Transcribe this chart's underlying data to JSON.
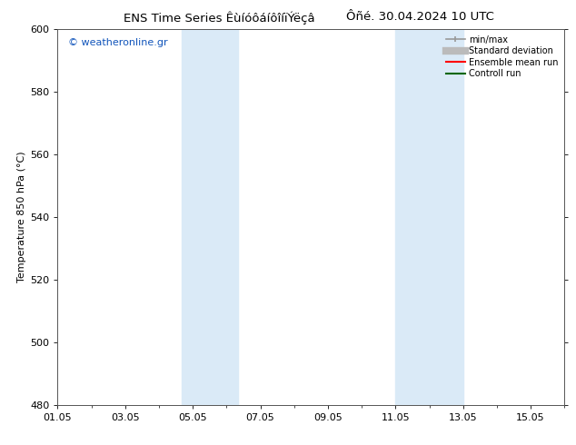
{
  "title_left": "ENS Time Series ÊùíóôáíôîíïÝëçâ",
  "title_right": "Ôñé. 30.04.2024 10 UTC",
  "ylabel": "Temperature 850 hPa (°C)",
  "watermark": "© weatheronline.gr",
  "ylim": [
    480,
    600
  ],
  "yticks": [
    480,
    500,
    520,
    540,
    560,
    580,
    600
  ],
  "xtick_labels": [
    "01.05",
    "03.05",
    "05.05",
    "07.05",
    "09.05",
    "11.05",
    "13.05",
    "15.05"
  ],
  "xtick_positions": [
    0,
    2,
    4,
    6,
    8,
    10,
    12,
    14
  ],
  "xlim": [
    0,
    15
  ],
  "shaded_bands": [
    {
      "x_start": 3.67,
      "x_end": 5.33
    },
    {
      "x_start": 10.0,
      "x_end": 12.0
    }
  ],
  "shaded_color": "#daeaf7",
  "background_color": "#ffffff",
  "title_fontsize": 9.5,
  "axis_label_fontsize": 8,
  "tick_fontsize": 8,
  "watermark_color": "#1155bb",
  "legend_minmax_color": "#999999",
  "legend_std_color": "#bbbbbb",
  "legend_ens_color": "#ff0000",
  "legend_ctrl_color": "#006600"
}
